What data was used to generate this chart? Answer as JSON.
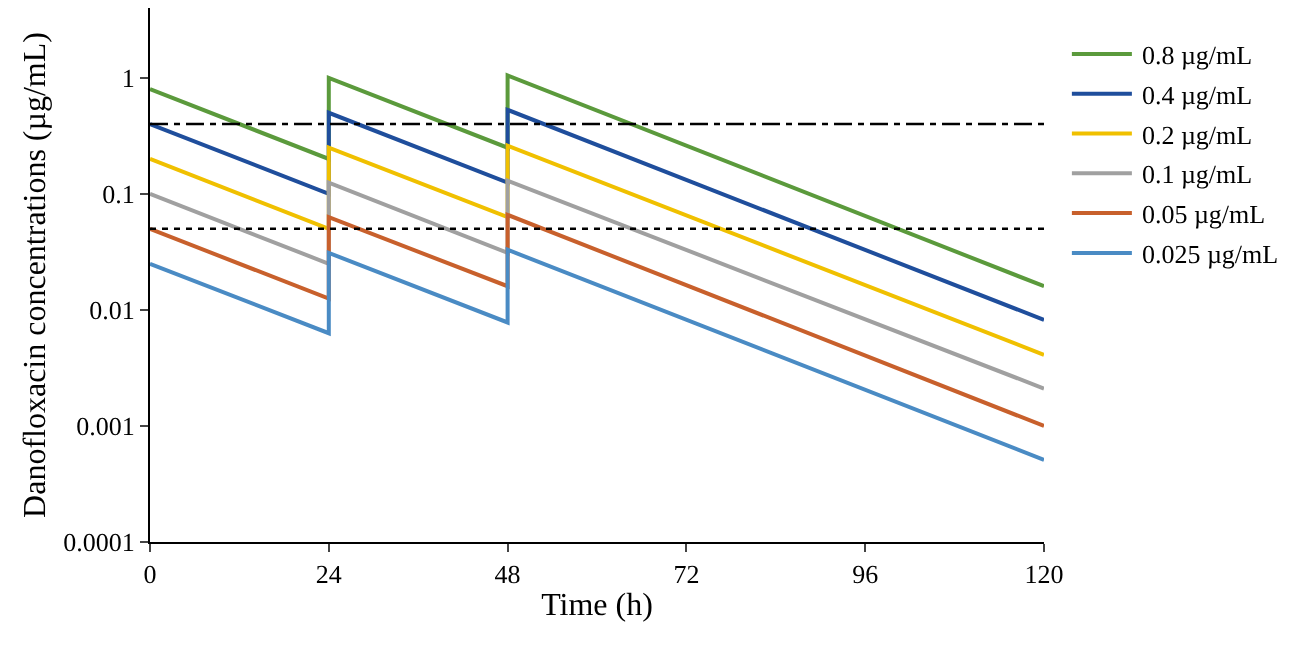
{
  "chart_data": {
    "type": "line",
    "xlabel": "Time (h)",
    "ylabel": "Danofloxacin concentrations (µg/mL)",
    "log": "y",
    "legend": "right",
    "marker": "none",
    "line_style": "solid",
    "x": [
      0,
      24,
      24,
      48,
      48,
      120
    ],
    "xlim": [
      0,
      120
    ],
    "xticks": [
      0,
      24,
      48,
      72,
      96,
      120
    ],
    "ylim": [
      0.0001,
      4
    ],
    "yticks": [
      {
        "value": 0.0001,
        "label": "0.0001"
      },
      {
        "value": 0.001,
        "label": "0.001"
      },
      {
        "value": 0.01,
        "label": "0.01"
      },
      {
        "value": 0.1,
        "label": "0.1"
      },
      {
        "value": 1,
        "label": "1"
      }
    ],
    "series": [
      {
        "name": "0.8 µg/mL",
        "color": "#5b9a3c",
        "values": [
          0.8,
          0.2,
          1.0,
          0.25,
          1.05,
          0.016
        ]
      },
      {
        "name": "0.4 µg/mL",
        "color": "#1f4e9c",
        "values": [
          0.4,
          0.1,
          0.5,
          0.125,
          0.53,
          0.0082
        ]
      },
      {
        "name": "0.2 µg/mL",
        "color": "#f0c000",
        "values": [
          0.2,
          0.05,
          0.25,
          0.063,
          0.26,
          0.0041
        ]
      },
      {
        "name": "0.1 µg/mL",
        "color": "#a0a0a0",
        "values": [
          0.1,
          0.025,
          0.125,
          0.031,
          0.13,
          0.0021
        ]
      },
      {
        "name": "0.05 µg/mL",
        "color": "#c8602c",
        "values": [
          0.05,
          0.0125,
          0.063,
          0.016,
          0.066,
          0.001
        ]
      },
      {
        "name": "0.025 µg/mL",
        "color": "#4a8bc4",
        "values": [
          0.025,
          0.0063,
          0.031,
          0.0078,
          0.033,
          0.00051
        ]
      }
    ],
    "ref_lines": [
      {
        "axis": "y",
        "value": 0.4,
        "color": "#000000",
        "line_style": "dashdot"
      },
      {
        "axis": "y",
        "value": 0.05,
        "color": "#000000",
        "line_style": "dotted"
      }
    ]
  }
}
